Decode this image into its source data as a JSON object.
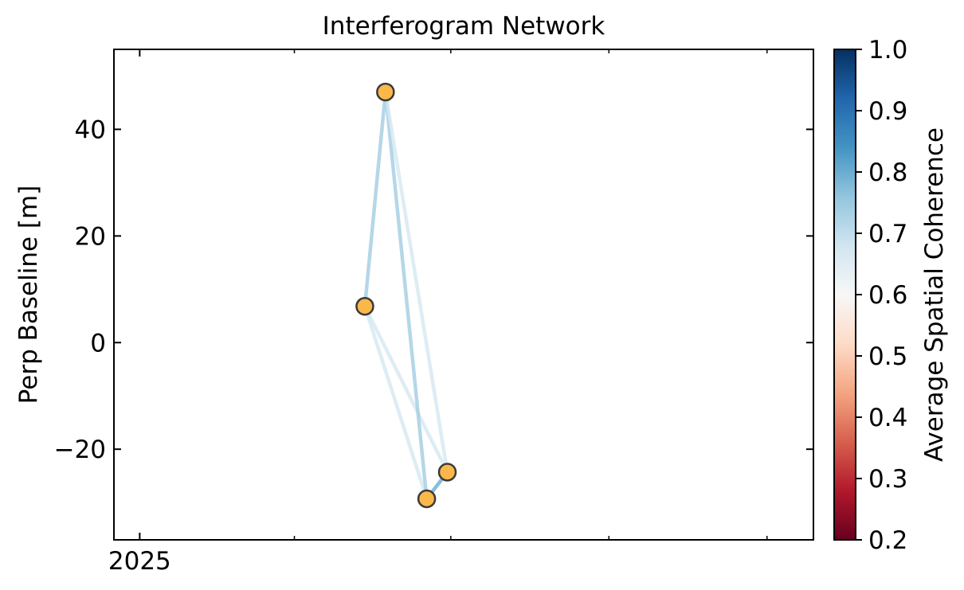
{
  "chart_data": {
    "type": "network",
    "title": "Interferogram Network",
    "xlabel": "",
    "ylabel": "Perp Baseline [m]",
    "x_tick_labels": [
      "2025"
    ],
    "ylim": [
      -37,
      55
    ],
    "y_ticks": [
      -20,
      0,
      20,
      40
    ],
    "y_tick_labels": [
      "−20",
      "0",
      "20",
      "40"
    ],
    "nodes": [
      {
        "id": "n1",
        "x": "2025-05-12",
        "y": 6.8
      },
      {
        "id": "n2",
        "x": "2025-05-24",
        "y": 47.0
      },
      {
        "id": "n3",
        "x": "2025-06-17",
        "y": -29.3
      },
      {
        "id": "n4",
        "x": "2025-06-29",
        "y": -24.3
      }
    ],
    "edges": [
      {
        "from": "n1",
        "to": "n2",
        "coherence": 0.74
      },
      {
        "from": "n1",
        "to": "n3",
        "coherence": 0.67
      },
      {
        "from": "n1",
        "to": "n4",
        "coherence": 0.67
      },
      {
        "from": "n2",
        "to": "n3",
        "coherence": 0.74
      },
      {
        "from": "n2",
        "to": "n4",
        "coherence": 0.67
      },
      {
        "from": "n3",
        "to": "n4",
        "coherence": 0.8
      }
    ],
    "colorbar": {
      "label": "Average Spatial Coherence",
      "range": [
        0.2,
        1.0
      ],
      "ticks": [
        0.2,
        0.3,
        0.4,
        0.5,
        0.6,
        0.7,
        0.8,
        0.9,
        1.0
      ],
      "tick_labels": [
        "0.2",
        "0.3",
        "0.4",
        "0.5",
        "0.6",
        "0.7",
        "0.8",
        "0.9",
        "1.0"
      ],
      "colormap": "RdBu"
    },
    "node_color": "#fbb84a",
    "node_edge_color": "#3a3a3a",
    "grid": false
  }
}
